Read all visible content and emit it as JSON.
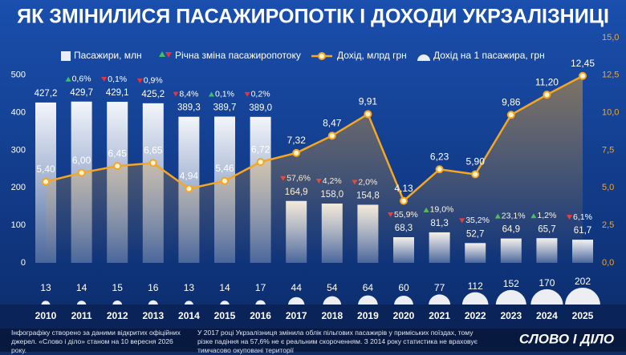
{
  "chart_data": {
    "type": "combo",
    "title": "ЯК ЗМІНИЛИСЯ ПАСАЖИРОПОТІК І ДОХОДИ УКРЗАЛІЗНИЦІ",
    "categories": [
      "2010",
      "2011",
      "2012",
      "2013",
      "2014",
      "2015",
      "2016",
      "2017",
      "2018",
      "2019",
      "2020",
      "2021",
      "2022",
      "2023",
      "2024",
      "2025"
    ],
    "ylim": [
      0,
      600
    ],
    "yticks": [
      0,
      100,
      200,
      300,
      400,
      500
    ],
    "y2lim": [
      0,
      15
    ],
    "y2ticks": [
      {
        "value": 0,
        "label": "0,0"
      },
      {
        "value": 2.5,
        "label": "2,5"
      },
      {
        "value": 5,
        "label": "5,0"
      },
      {
        "value": 7.5,
        "label": "7,5"
      },
      {
        "value": 10,
        "label": "10,0"
      },
      {
        "value": 12.5,
        "label": "12,5"
      },
      {
        "value": 15,
        "label": "15,0"
      }
    ],
    "grid": false,
    "series": [
      {
        "name": "Пасажири, млн",
        "type": "bar",
        "color": "#e8eef8",
        "values": [
          427.2,
          429.7,
          429.1,
          425.2,
          389.3,
          389.7,
          389.0,
          164.9,
          158.0,
          154.8,
          68.3,
          81.3,
          52.7,
          64.9,
          65.7,
          61.7
        ],
        "value_labels": [
          "427,2",
          "429,7",
          "429,1",
          "425,2",
          "389,3",
          "389,7",
          "389,0",
          "164,9",
          "158,0",
          "154,8",
          "68,3",
          "81,3",
          "52,7",
          "64,9",
          "65,7",
          "61,7"
        ]
      },
      {
        "name": "Річна зміна пасажиропотоку",
        "type": "change",
        "up_color": "#3fc060",
        "down_color": "#e8323c",
        "values": [
          null,
          0.6,
          -0.1,
          -0.9,
          -8.4,
          0.1,
          -0.2,
          -57.6,
          -4.2,
          -2.0,
          -55.9,
          19.0,
          -35.2,
          23.1,
          1.2,
          -6.1
        ],
        "value_labels": [
          null,
          "0,6%",
          "0,1%",
          "0,9%",
          "8,4%",
          "0,1%",
          "0,2%",
          "57,6%",
          "4,2%",
          "2,0%",
          "55,9%",
          "19,0%",
          "35,2%",
          "23,1%",
          "1,2%",
          "6,1%"
        ]
      },
      {
        "name": "Дохід, млрд грн",
        "type": "line",
        "axis": "y2",
        "color": "#f5a623",
        "values": [
          5.4,
          6.0,
          6.45,
          6.65,
          4.94,
          5.46,
          6.72,
          7.32,
          8.47,
          9.91,
          4.13,
          6.23,
          5.9,
          9.86,
          11.2,
          12.45
        ],
        "value_labels": [
          "5,40",
          "6,00",
          "6,45",
          "6,65",
          "4,94",
          "5,46",
          "6,72",
          "7,32",
          "8,47",
          "9,91",
          "4,13",
          "6,23",
          "5,90",
          "9,86",
          "11,20",
          "12,45"
        ]
      },
      {
        "name": "Дохід на 1 пасажира, грн",
        "type": "bubble",
        "color": "#ffffff",
        "values": [
          13,
          14,
          15,
          16,
          13,
          14,
          17,
          44,
          54,
          64,
          60,
          77,
          112,
          152,
          170,
          202
        ]
      }
    ]
  },
  "footer": {
    "source": "Інфографіку створено за даними відкритих офіційних джерел. «Слово і діло» станом на 10 вересня 2026 року.",
    "note": "У 2017 році Укрзалізниця змінила облік пільгових пасажирів у приміських поїздах, тому різке падіння на 57,6% не є реальним скороченням. З 2014 року статистика не враховує тимчасово окуповані території",
    "logo": "СЛОВО І ДІЛО"
  }
}
